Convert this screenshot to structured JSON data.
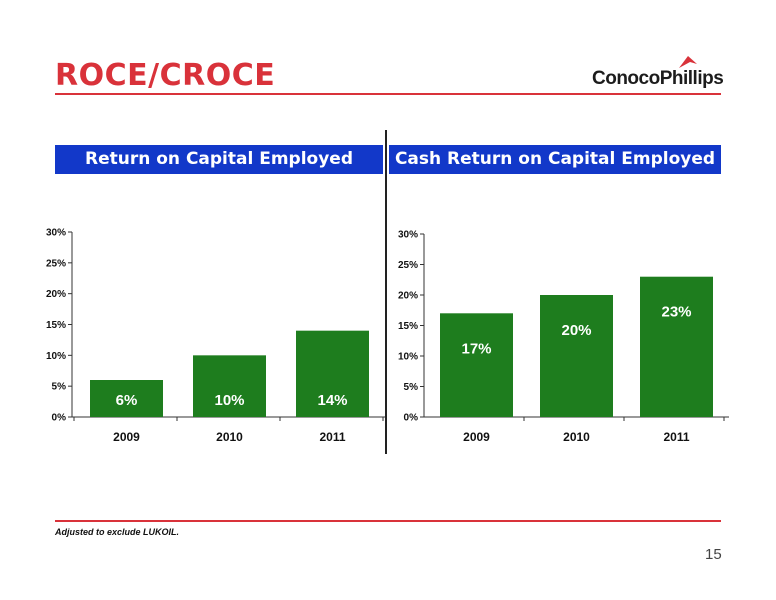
{
  "slide": {
    "title": "ROCE/CROCE",
    "logo_text": "ConocoPhillips",
    "footnote": "Adjusted to exclude LUKOIL.",
    "page_number": "15"
  },
  "colors": {
    "bar": "#1e7d1e",
    "header_bg": "#1238c9",
    "accent": "#d9323a"
  },
  "chart_data": [
    {
      "type": "bar",
      "title": "Return on Capital Employed",
      "categories": [
        "2009",
        "2010",
        "2011"
      ],
      "values": [
        6,
        10,
        14
      ],
      "data_labels": [
        "6%",
        "10%",
        "14%"
      ],
      "yticks": [
        "0%",
        "5%",
        "10%",
        "15%",
        "20%",
        "25%",
        "30%"
      ],
      "ylim": [
        0,
        30
      ],
      "grid": false
    },
    {
      "type": "bar",
      "title": "Cash Return on Capital Employed",
      "categories": [
        "2009",
        "2010",
        "2011"
      ],
      "values": [
        17,
        20,
        23
      ],
      "data_labels": [
        "17%",
        "20%",
        "23%"
      ],
      "yticks": [
        "0%",
        "5%",
        "10%",
        "15%",
        "20%",
        "25%",
        "30%"
      ],
      "ylim": [
        0,
        30
      ],
      "grid": false
    }
  ]
}
